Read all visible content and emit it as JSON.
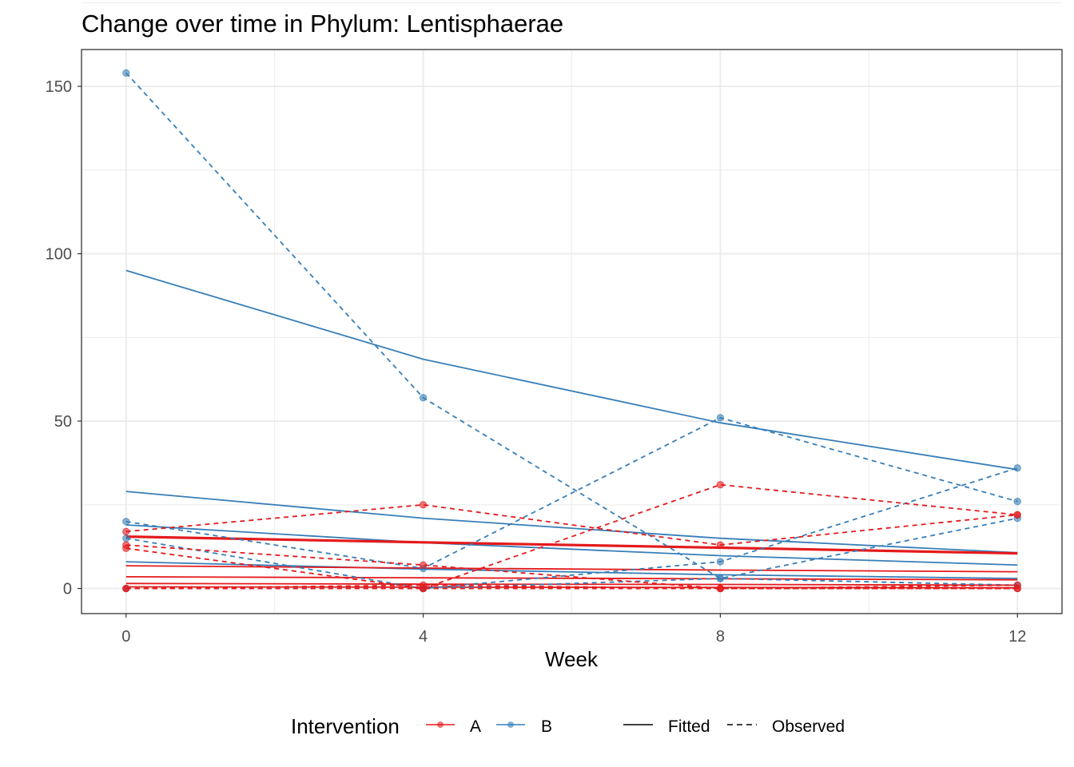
{
  "chart_data": {
    "type": "line",
    "title": "Change over time in Phylum: Lentisphaerae",
    "xlabel": "Week",
    "ylabel": "",
    "x_ticks": [
      0,
      4,
      8,
      12
    ],
    "y_ticks": [
      0,
      50,
      100,
      150
    ],
    "xlim": [
      -0.6,
      12.6
    ],
    "ylim": [
      -7.5,
      161
    ],
    "grid": true,
    "legend": {
      "position": "bottom",
      "color_title": "Intervention",
      "groups": [
        {
          "name": "A",
          "color": "#e41a1c"
        },
        {
          "name": "B",
          "color": "#377eb8"
        }
      ],
      "linetypes": [
        {
          "name": "Fitted",
          "dash": "solid"
        },
        {
          "name": "Observed",
          "dash": "dashed"
        }
      ]
    },
    "x": [
      0,
      4,
      8,
      12
    ],
    "observed": [
      {
        "group": "B",
        "values": [
          154,
          57,
          3,
          1
        ]
      },
      {
        "group": "B",
        "values": [
          20,
          6,
          51,
          26
        ]
      },
      {
        "group": "B",
        "values": [
          15,
          0,
          8,
          36
        ]
      },
      {
        "group": "B",
        "values": [
          0,
          0,
          3,
          21
        ]
      },
      {
        "group": "A",
        "values": [
          17,
          25,
          13,
          22
        ]
      },
      {
        "group": "A",
        "values": [
          12,
          0,
          31,
          22
        ]
      },
      {
        "group": "A",
        "values": [
          13,
          7,
          0,
          0
        ]
      },
      {
        "group": "A",
        "values": [
          0,
          1,
          0,
          1
        ]
      },
      {
        "group": "A",
        "values": [
          0,
          0,
          0,
          0
        ]
      }
    ],
    "fitted": [
      {
        "group": "B",
        "values": [
          95,
          68.5,
          49.5,
          35.5
        ]
      },
      {
        "group": "B",
        "values": [
          29,
          21,
          15,
          10.7
        ]
      },
      {
        "group": "B",
        "values": [
          19,
          13.7,
          9.8,
          7
        ]
      },
      {
        "group": "B",
        "values": [
          8,
          5.8,
          4.1,
          3
        ]
      },
      {
        "group": "A",
        "values": [
          15.5,
          13.8,
          12.2,
          10.5
        ],
        "bold": true
      },
      {
        "group": "A",
        "values": [
          6.8,
          6.1,
          5.5,
          5
        ]
      },
      {
        "group": "A",
        "values": [
          3.5,
          3.2,
          2.9,
          2.6
        ]
      },
      {
        "group": "A",
        "values": [
          1.5,
          1.3,
          1.2,
          1
        ]
      },
      {
        "group": "A",
        "values": [
          0.5,
          0.4,
          0.3,
          0.2
        ]
      }
    ]
  }
}
